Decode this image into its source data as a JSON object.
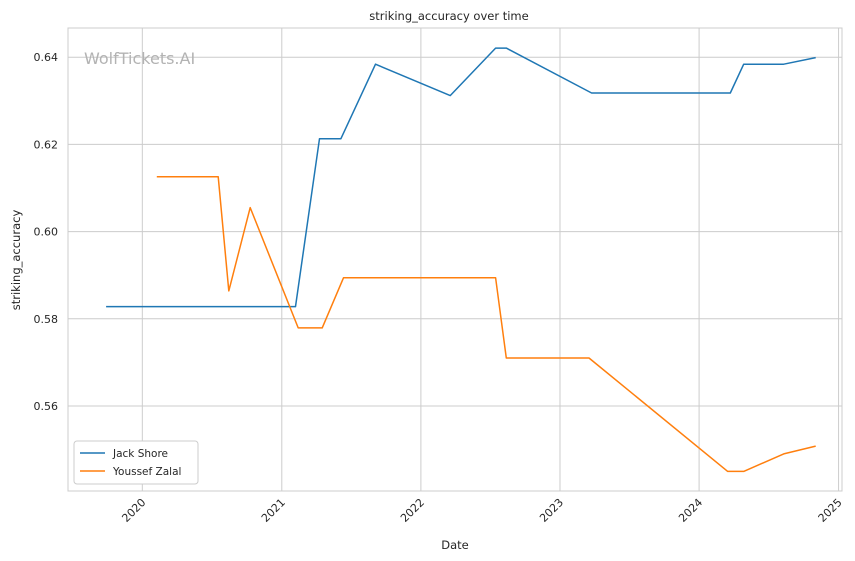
{
  "chart_data": {
    "type": "line",
    "title": "striking_accuracy over time",
    "xlabel": "Date",
    "ylabel": "striking_accuracy",
    "watermark": "WolfTickets.AI",
    "x_ticks": [
      "2020",
      "2021",
      "2022",
      "2023",
      "2024",
      "2025"
    ],
    "y_ticks": [
      "0.56",
      "0.58",
      "0.60",
      "0.62",
      "0.64"
    ],
    "xlim": [
      "2019-06-20",
      "2025-01-10"
    ],
    "ylim": [
      0.5405,
      0.6467
    ],
    "grid": true,
    "legend_position": "bottom-left",
    "series": [
      {
        "name": "Jack Shore",
        "color": "#1f77b4",
        "points": [
          [
            "2019-09-28",
            0.5828
          ],
          [
            "2021-02-06",
            0.5828
          ],
          [
            "2021-04-10",
            0.6213
          ],
          [
            "2021-06-05",
            0.6213
          ],
          [
            "2021-09-04",
            0.6384
          ],
          [
            "2022-03-19",
            0.6312
          ],
          [
            "2022-07-16",
            0.6421
          ],
          [
            "2022-08-13",
            0.6421
          ],
          [
            "2023-03-25",
            0.6318
          ],
          [
            "2024-03-23",
            0.6318
          ],
          [
            "2024-04-27",
            0.6384
          ],
          [
            "2024-08-10",
            0.6384
          ],
          [
            "2024-11-02",
            0.6399
          ]
        ]
      },
      {
        "name": "Youssef Zalal",
        "color": "#ff7f0e",
        "points": [
          [
            "2020-02-08",
            0.6126
          ],
          [
            "2020-07-18",
            0.6126
          ],
          [
            "2020-08-15",
            0.5864
          ],
          [
            "2020-10-10",
            0.6055
          ],
          [
            "2021-02-13",
            0.5779
          ],
          [
            "2021-04-17",
            0.5779
          ],
          [
            "2021-06-12",
            0.5894
          ],
          [
            "2022-07-16",
            0.5894
          ],
          [
            "2022-08-13",
            0.571
          ],
          [
            "2023-03-18",
            0.571
          ],
          [
            "2024-03-16",
            0.545
          ],
          [
            "2024-04-27",
            0.545
          ],
          [
            "2024-08-10",
            0.549
          ],
          [
            "2024-11-02",
            0.5508
          ]
        ]
      }
    ]
  }
}
